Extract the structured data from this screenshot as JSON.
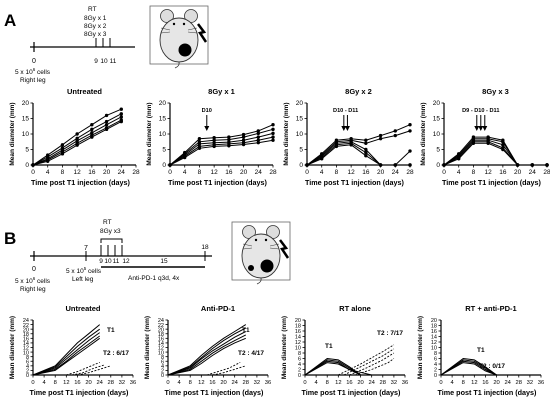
{
  "panels": {
    "A": "A",
    "B": "B"
  },
  "timeline_a": {
    "day0": "0",
    "cells": "5 x 10",
    "cells_exp": "6",
    "cells_suffix": " cells",
    "site": "Right leg",
    "rt_label": "RT",
    "rt_dose1": "8Gy x 1",
    "rt_dose2": "8Gy x 2",
    "rt_dose3": "8Gy x 3",
    "days": [
      "9",
      "10",
      "11"
    ]
  },
  "timeline_b": {
    "day0": "0",
    "cells_right": "5 x 10",
    "cells_right_exp": "6",
    "cells_right_suffix": " cells",
    "site_right": "Right leg",
    "day7": "7",
    "cells_left": "5 x 10",
    "cells_left_exp": "5",
    "cells_left_suffix": " cells",
    "site_left": "Left leg",
    "rt_label": "RT",
    "rt_dose": "8Gy x3",
    "days": [
      "9",
      "10",
      "11",
      "12",
      "15",
      "18"
    ],
    "treatment": "Anti-PD-1 q3d, 4x"
  },
  "common": {
    "ylabel": "Mean diameter (mm)",
    "xlabel": "Time post T1 injection (days)"
  },
  "chart_data": [
    {
      "type": "line",
      "title": "Untreated",
      "xlim": [
        0,
        28
      ],
      "ylim": [
        0,
        20
      ],
      "xticks": [
        0,
        4,
        8,
        12,
        16,
        20,
        24,
        28
      ],
      "yticks": [
        0,
        5,
        10,
        15,
        20
      ],
      "annotations": [],
      "series": [
        {
          "x": [
            0,
            4,
            8,
            12,
            16,
            20,
            24
          ],
          "y": [
            0,
            3.2,
            6.5,
            10,
            13,
            16,
            18
          ]
        },
        {
          "x": [
            0,
            4,
            8,
            12,
            16,
            20,
            24
          ],
          "y": [
            0,
            2.6,
            5.5,
            8.6,
            11.5,
            14,
            16.5
          ]
        },
        {
          "x": [
            0,
            4,
            8,
            12,
            16,
            20,
            24
          ],
          "y": [
            0,
            2,
            4.8,
            7.8,
            10.4,
            13,
            15.5
          ]
        },
        {
          "x": [
            0,
            4,
            8,
            12,
            16,
            20,
            24
          ],
          "y": [
            0,
            1.6,
            4.2,
            7,
            9.6,
            12,
            14.5
          ]
        },
        {
          "x": [
            0,
            4,
            8,
            12,
            16,
            20,
            24
          ],
          "y": [
            0,
            1.2,
            3.6,
            6.4,
            9,
            11.5,
            14
          ]
        }
      ]
    },
    {
      "type": "line",
      "title": "8Gy x 1",
      "xlim": [
        0,
        28
      ],
      "ylim": [
        0,
        20
      ],
      "xticks": [
        0,
        4,
        8,
        12,
        16,
        20,
        24,
        28
      ],
      "yticks": [
        0,
        5,
        10,
        15,
        20
      ],
      "annotations": [
        {
          "label": "D10",
          "x": 10
        }
      ],
      "series": [
        {
          "x": [
            0,
            4,
            8,
            12,
            16,
            20,
            24,
            28
          ],
          "y": [
            0,
            4,
            8.5,
            8.8,
            9,
            9.8,
            11,
            13
          ]
        },
        {
          "x": [
            0,
            4,
            8,
            12,
            16,
            20,
            24,
            28
          ],
          "y": [
            0,
            3.6,
            7.5,
            8,
            8.2,
            9,
            10.2,
            11.5
          ]
        },
        {
          "x": [
            0,
            4,
            8,
            12,
            16,
            20,
            24,
            28
          ],
          "y": [
            0,
            3.2,
            6.8,
            7.2,
            7.4,
            8,
            9,
            10.2
          ]
        },
        {
          "x": [
            0,
            4,
            8,
            12,
            16,
            20,
            24,
            28
          ],
          "y": [
            0,
            2.8,
            6,
            6.5,
            6.8,
            7.2,
            8,
            9
          ]
        },
        {
          "x": [
            0,
            4,
            8,
            12,
            16,
            20,
            24,
            28
          ],
          "y": [
            0,
            2.4,
            5.4,
            6,
            6.2,
            6.6,
            7.2,
            8
          ]
        }
      ]
    },
    {
      "type": "line",
      "title": "8Gy x 2",
      "xlim": [
        0,
        28
      ],
      "ylim": [
        0,
        20
      ],
      "xticks": [
        0,
        4,
        8,
        12,
        16,
        20,
        24,
        28
      ],
      "yticks": [
        0,
        5,
        10,
        15,
        20
      ],
      "annotations": [
        {
          "label": "D10 - D11",
          "x": 10.5
        }
      ],
      "series": [
        {
          "x": [
            0,
            4,
            8,
            12,
            16,
            20,
            24,
            28
          ],
          "y": [
            0,
            3.6,
            8,
            8.5,
            8,
            9.5,
            11,
            13
          ]
        },
        {
          "x": [
            0,
            4,
            8,
            12,
            16,
            20,
            24,
            28
          ],
          "y": [
            0,
            3.2,
            7.5,
            8,
            7,
            8.5,
            9.5,
            11
          ]
        },
        {
          "x": [
            0,
            4,
            8,
            12,
            16,
            20,
            24,
            28
          ],
          "y": [
            0,
            2.8,
            7,
            7.5,
            5,
            0,
            0,
            4.5
          ]
        },
        {
          "x": [
            0,
            4,
            8,
            12,
            16,
            20,
            24,
            28
          ],
          "y": [
            0,
            2.4,
            6.5,
            7,
            4,
            0,
            0,
            0
          ]
        },
        {
          "x": [
            0,
            4,
            8,
            12,
            16,
            20,
            24,
            28
          ],
          "y": [
            0,
            2,
            6,
            6.5,
            3,
            0,
            0,
            0
          ]
        }
      ]
    },
    {
      "type": "line",
      "title": "8Gy x 3",
      "xlim": [
        0,
        28
      ],
      "ylim": [
        0,
        20
      ],
      "xticks": [
        0,
        4,
        8,
        12,
        16,
        20,
        24,
        28
      ],
      "yticks": [
        0,
        5,
        10,
        15,
        20
      ],
      "annotations": [
        {
          "label": "D9 - D10 - D11",
          "x": 10
        }
      ],
      "series": [
        {
          "x": [
            0,
            4,
            8,
            12,
            16,
            20,
            24,
            28
          ],
          "y": [
            0,
            3.6,
            9,
            9,
            8,
            0,
            0,
            0
          ]
        },
        {
          "x": [
            0,
            4,
            8,
            12,
            16,
            20,
            24,
            28
          ],
          "y": [
            0,
            3.2,
            8.5,
            8.5,
            7.5,
            0,
            0,
            0
          ]
        },
        {
          "x": [
            0,
            4,
            8,
            12,
            16,
            20,
            24,
            28
          ],
          "y": [
            0,
            2.8,
            8,
            8,
            6.5,
            0,
            0,
            0
          ]
        },
        {
          "x": [
            0,
            4,
            8,
            12,
            16,
            20,
            24,
            28
          ],
          "y": [
            0,
            2.4,
            7.5,
            7.5,
            5.5,
            0,
            0,
            0
          ]
        },
        {
          "x": [
            0,
            4,
            8,
            12,
            16,
            20,
            24,
            28
          ],
          "y": [
            0,
            2,
            7,
            7,
            5,
            0,
            0,
            0
          ]
        }
      ]
    },
    {
      "type": "line",
      "title": "Untreated",
      "xlim": [
        0,
        36
      ],
      "ylim": [
        0,
        24
      ],
      "xticks": [
        0,
        4,
        8,
        12,
        16,
        20,
        24,
        28,
        32,
        36
      ],
      "yticks": [
        0,
        2,
        4,
        6,
        8,
        10,
        12,
        14,
        16,
        18,
        20,
        22,
        24
      ],
      "labels": [
        "T1",
        "T2 : 6/17"
      ],
      "solid": [
        {
          "x": [
            0,
            8,
            12,
            16,
            20,
            24
          ],
          "y": [
            0,
            4,
            9,
            14,
            18,
            22
          ]
        },
        {
          "x": [
            0,
            8,
            12,
            16,
            20,
            24
          ],
          "y": [
            0,
            3.5,
            8,
            12.5,
            16.5,
            20
          ]
        },
        {
          "x": [
            0,
            8,
            12,
            16,
            20,
            24
          ],
          "y": [
            0,
            3,
            7,
            11,
            15,
            18.5
          ]
        },
        {
          "x": [
            0,
            8,
            12,
            16,
            20,
            24
          ],
          "y": [
            0,
            2.5,
            6,
            10,
            13.5,
            17
          ]
        },
        {
          "x": [
            0,
            8,
            12,
            16,
            20,
            24
          ],
          "y": [
            0,
            2,
            5.5,
            9,
            12.5,
            16
          ]
        }
      ],
      "dashed": [
        {
          "x": [
            12,
            16,
            20,
            24
          ],
          "y": [
            0,
            1.5,
            3.5,
            5.5
          ]
        },
        {
          "x": [
            14,
            18,
            22,
            26
          ],
          "y": [
            0,
            1,
            3,
            4.5
          ]
        },
        {
          "x": [
            16,
            20,
            24,
            28
          ],
          "y": [
            0,
            1,
            2.5,
            4
          ]
        }
      ]
    },
    {
      "type": "line",
      "title": "Anti-PD-1",
      "xlim": [
        0,
        36
      ],
      "ylim": [
        0,
        24
      ],
      "xticks": [
        0,
        4,
        8,
        12,
        16,
        20,
        24,
        28,
        32,
        36
      ],
      "yticks": [
        0,
        2,
        4,
        6,
        8,
        10,
        12,
        14,
        16,
        18,
        20,
        22,
        24
      ],
      "labels": [
        "T1",
        "T2 : 4/17"
      ],
      "solid": [
        {
          "x": [
            0,
            8,
            12,
            16,
            20,
            24,
            28
          ],
          "y": [
            0,
            4,
            8.5,
            12.5,
            16,
            19,
            22
          ]
        },
        {
          "x": [
            0,
            8,
            12,
            16,
            20,
            24,
            28
          ],
          "y": [
            0,
            3.5,
            7.5,
            11.5,
            15,
            18,
            20.5
          ]
        },
        {
          "x": [
            0,
            8,
            12,
            16,
            20,
            24,
            28
          ],
          "y": [
            0,
            3,
            7,
            10.5,
            13.5,
            16.5,
            19
          ]
        },
        {
          "x": [
            0,
            8,
            12,
            16,
            20,
            24,
            28
          ],
          "y": [
            0,
            2.5,
            6,
            9.5,
            12.5,
            15,
            17.5
          ]
        },
        {
          "x": [
            0,
            8,
            12,
            16,
            20,
            24,
            28
          ],
          "y": [
            0,
            2,
            5,
            8.5,
            11.5,
            14,
            16
          ]
        }
      ],
      "dashed": [
        {
          "x": [
            14,
            18,
            22,
            26
          ],
          "y": [
            0,
            1.5,
            3,
            5.5
          ]
        },
        {
          "x": [
            16,
            20,
            24,
            28
          ],
          "y": [
            0,
            1,
            2.5,
            4
          ]
        }
      ]
    },
    {
      "type": "line",
      "title": "RT alone",
      "xlim": [
        0,
        36
      ],
      "ylim": [
        0,
        20
      ],
      "xticks": [
        0,
        4,
        8,
        12,
        16,
        20,
        24,
        28,
        32,
        36
      ],
      "yticks": [
        0,
        2,
        4,
        6,
        8,
        10,
        12,
        14,
        16,
        18,
        20
      ],
      "labels": [
        "T1",
        "T2 : 7/17"
      ],
      "solid": [
        {
          "x": [
            0,
            8,
            12,
            16,
            20
          ],
          "y": [
            0,
            6,
            5.5,
            3,
            0
          ]
        },
        {
          "x": [
            0,
            8,
            12,
            16,
            20
          ],
          "y": [
            0,
            5.5,
            5,
            2.5,
            0
          ]
        },
        {
          "x": [
            0,
            8,
            12,
            16,
            20
          ],
          "y": [
            0,
            5,
            4.5,
            2,
            0
          ]
        },
        {
          "x": [
            0,
            8,
            12,
            16,
            20,
            24
          ],
          "y": [
            0,
            4.5,
            4,
            2,
            1,
            0
          ]
        }
      ],
      "dashed": [
        {
          "x": [
            12,
            20,
            28,
            32
          ],
          "y": [
            0,
            4,
            8.5,
            11
          ]
        },
        {
          "x": [
            14,
            20,
            28,
            32
          ],
          "y": [
            0,
            3,
            7,
            9.5
          ]
        },
        {
          "x": [
            16,
            22,
            28,
            32
          ],
          "y": [
            0,
            2.5,
            5.5,
            8
          ]
        },
        {
          "x": [
            18,
            24,
            30,
            32
          ],
          "y": [
            0,
            2,
            4.5,
            6
          ]
        }
      ]
    },
    {
      "type": "line",
      "title": "RT + anti-PD-1",
      "xlim": [
        0,
        36
      ],
      "ylim": [
        0,
        20
      ],
      "xticks": [
        0,
        4,
        8,
        12,
        16,
        20,
        24,
        28,
        32,
        36
      ],
      "yticks": [
        0,
        2,
        4,
        6,
        8,
        10,
        12,
        14,
        16,
        18,
        20
      ],
      "labels": [
        "T1",
        "T2 : 0/17"
      ],
      "solid": [
        {
          "x": [
            0,
            8,
            12,
            16,
            20
          ],
          "y": [
            0,
            6,
            5.5,
            3,
            0
          ]
        },
        {
          "x": [
            0,
            8,
            12,
            16,
            20
          ],
          "y": [
            0,
            5.5,
            5,
            2.5,
            0
          ]
        },
        {
          "x": [
            0,
            8,
            12,
            16,
            20
          ],
          "y": [
            0,
            5,
            4.5,
            2,
            0
          ]
        },
        {
          "x": [
            0,
            8,
            12,
            16,
            20
          ],
          "y": [
            0,
            4.5,
            4,
            1.5,
            0
          ]
        }
      ],
      "dashed": []
    }
  ]
}
